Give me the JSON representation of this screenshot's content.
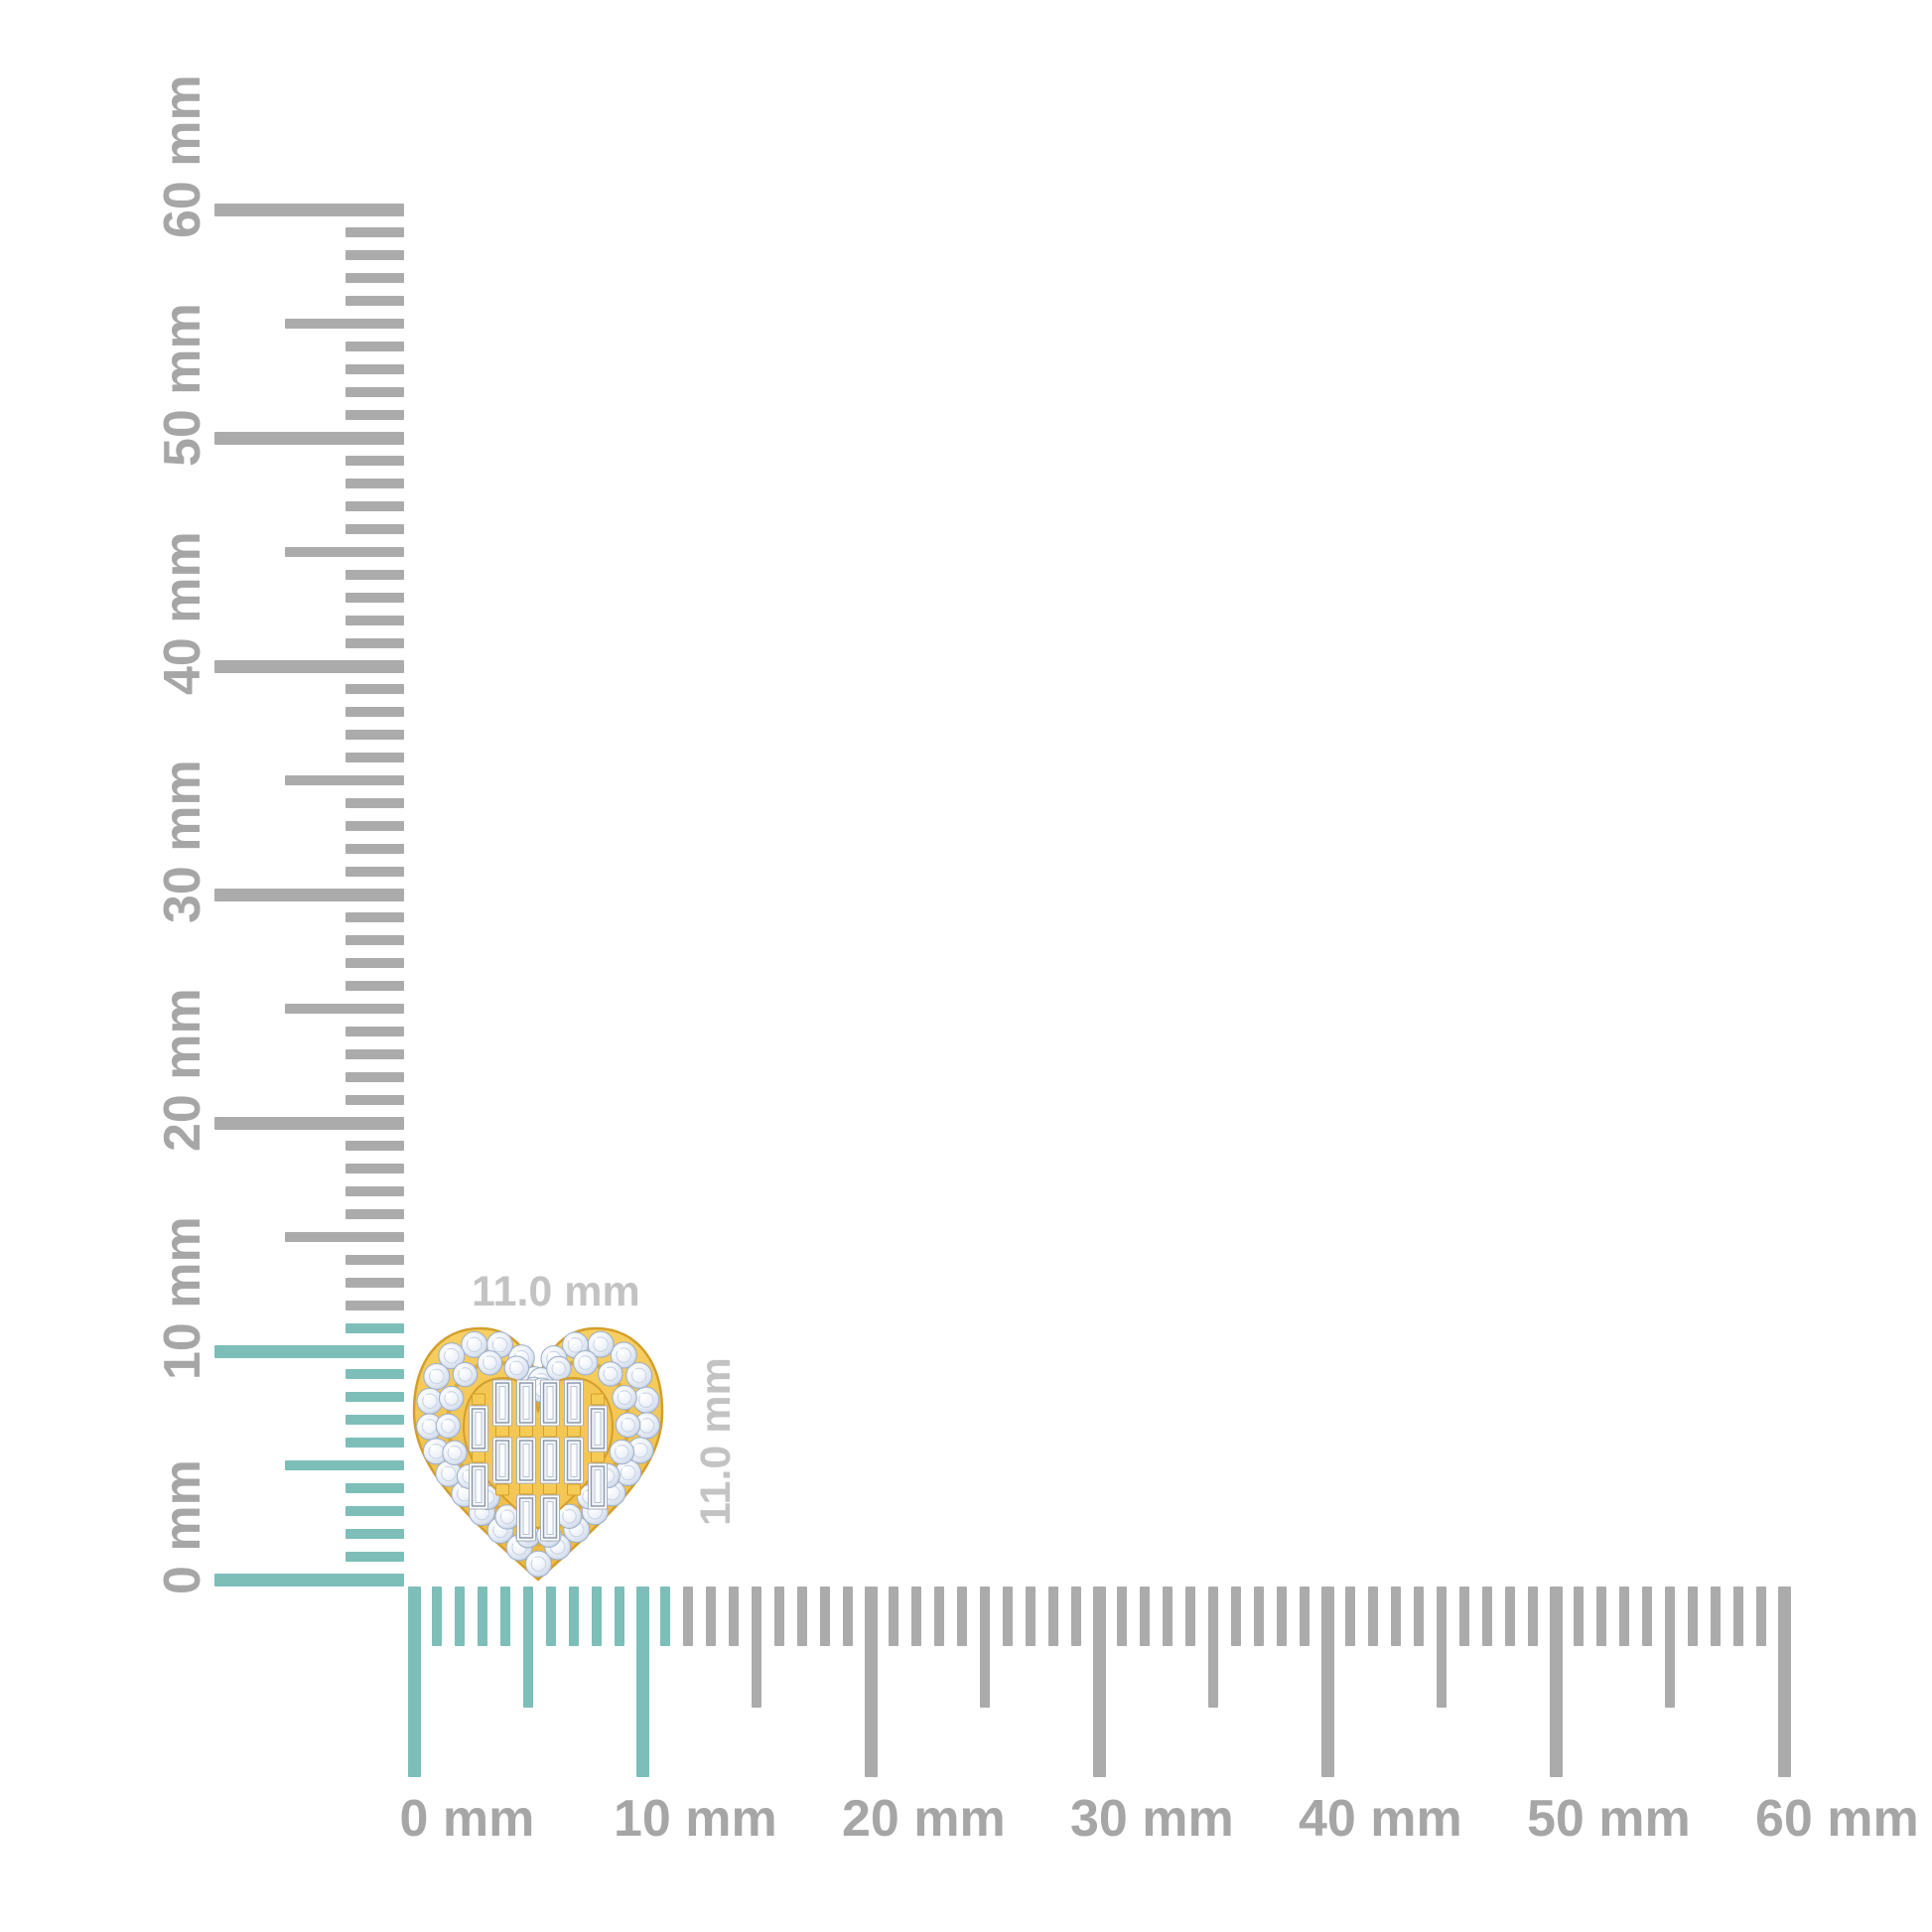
{
  "page": {
    "background": "#FFFFFF"
  },
  "item": {
    "name": "heart-shaped yellow-gold stud with round pave halo and baguette diamond center",
    "width_label": "11.0 mm",
    "height_label": "11.0 mm"
  },
  "rulers": {
    "unit": "mm",
    "min_mm": 0,
    "max_mm": 60,
    "major_step_mm": 10,
    "half_step_mm": 5,
    "minor_step_mm": 1,
    "highlight_span_mm": 11,
    "vertical": {
      "labels": [
        "0 mm",
        "10 mm",
        "20 mm",
        "30 mm",
        "40 mm",
        "50 mm",
        "60 mm"
      ]
    },
    "horizontal": {
      "labels": [
        "0 mm",
        "10 mm",
        "20 mm",
        "30 mm",
        "40 mm",
        "50 mm",
        "60 mm"
      ]
    }
  },
  "colors": {
    "tick_gray": "#ABABAB",
    "tick_teal": "#7DBEB8",
    "ruler_label_gray": "#A6A6A6",
    "dimension_label_gray": "#C3C3C3",
    "gold_light": "#F7CF63",
    "gold": "#F2C44D",
    "gold_mid": "#EDB93E",
    "gold_dark": "#D49E2B",
    "gold_prong": "#E0AA35",
    "diamond_light": "#EFF3F9",
    "diamond_mid": "#D9E1EF",
    "diamond_deep": "#B3C1D8",
    "diamond_edge": "#9DAEC6",
    "baguette_line": "#8E99AC"
  }
}
